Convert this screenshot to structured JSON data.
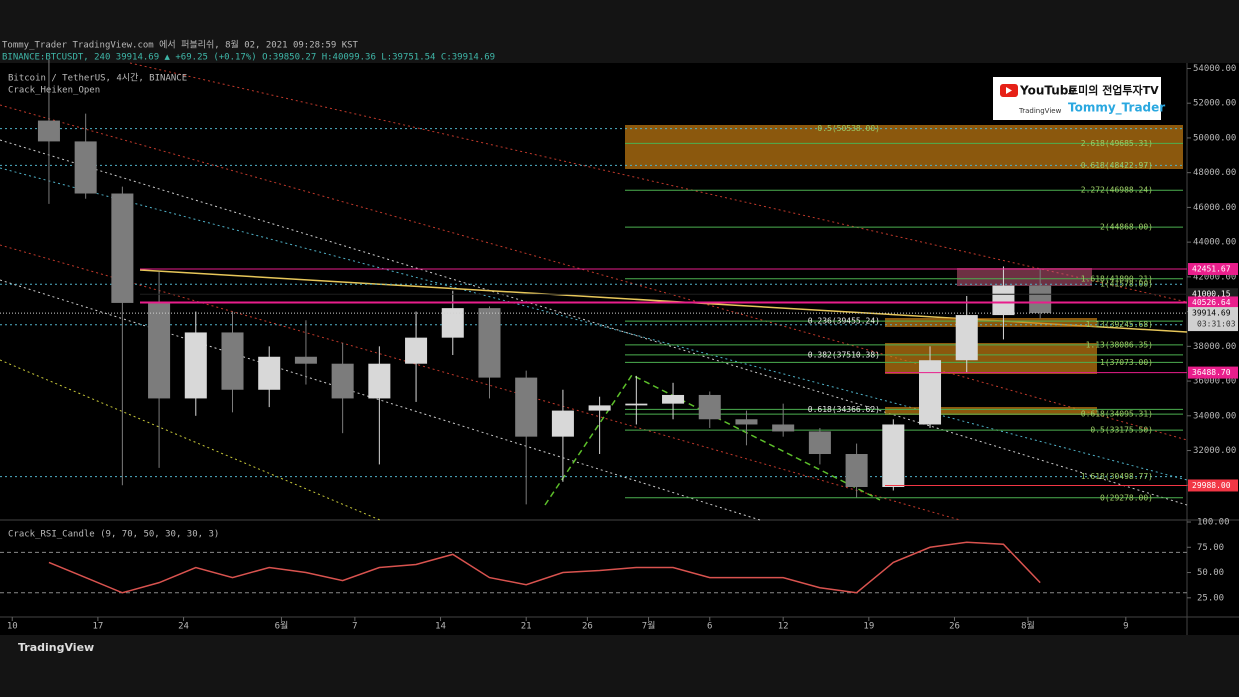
{
  "header": {
    "published": "Tommy_Trader TradingView.com 에서 퍼블리쉬, 8월 02, 2021 09:28:59 KST",
    "symbol_line": "BINANCE:BTCUSDT, 240  39914.69 ▲ +69.25 (+0.17%) O:39850.27 H:40099.36 L:39751.54 C:39914.69"
  },
  "watermark": {
    "youtube": "YouTube",
    "tradingview": "TradingView",
    "channel": "토미의 전업투자TV",
    "handle": "Tommy_Trader"
  },
  "footer": "TradingView",
  "chart_data": [
    {
      "type": "candlestick",
      "title": "Bitcoin / TetherUS, 4시간, BINANCE",
      "indicator": "Crack_Heiken_Open",
      "up_color": "#d8d8d8",
      "down_color": "#7c7c7c",
      "x": [
        "2021-05-13",
        "2021-05-16",
        "2021-05-19",
        "2021-05-22",
        "2021-05-25",
        "2021-05-28",
        "2021-05-31",
        "2021-06-03",
        "2021-06-06",
        "2021-06-09",
        "2021-06-12",
        "2021-06-15",
        "2021-06-18",
        "2021-06-21",
        "2021-06-24",
        "2021-06-27",
        "2021-06-30",
        "2021-07-03",
        "2021-07-06",
        "2021-07-09",
        "2021-07-12",
        "2021-07-15",
        "2021-07-18",
        "2021-07-21",
        "2021-07-24",
        "2021-07-27",
        "2021-07-30",
        "2021-08-02"
      ],
      "open": [
        51000,
        49800,
        46800,
        40500,
        35000,
        38800,
        35500,
        37400,
        37000,
        35000,
        37000,
        38500,
        40200,
        36200,
        32800,
        34300,
        34600,
        34700,
        35200,
        33800,
        33500,
        33100,
        31800,
        29900,
        33500,
        37200,
        39800,
        41500
      ],
      "high": [
        54500,
        51400,
        47200,
        42300,
        40000,
        40000,
        38000,
        39500,
        38200,
        38000,
        40000,
        41200,
        40300,
        36600,
        35500,
        35100,
        36300,
        35900,
        35400,
        34300,
        34700,
        33300,
        32400,
        33800,
        38000,
        40900,
        42600,
        42450
      ],
      "low": [
        46200,
        46500,
        30000,
        31000,
        34000,
        34200,
        34500,
        35800,
        33000,
        31200,
        34800,
        37500,
        35000,
        28900,
        30200,
        31800,
        33500,
        33800,
        33300,
        32300,
        32800,
        31200,
        29300,
        29700,
        33300,
        36500,
        38400,
        39600
      ],
      "close": [
        49800,
        46800,
        40500,
        35000,
        38800,
        35500,
        37400,
        37000,
        35000,
        37000,
        38500,
        40200,
        36200,
        32800,
        34300,
        34600,
        34700,
        35200,
        33800,
        33500,
        33100,
        31800,
        29900,
        33500,
        37200,
        39800,
        41500,
        39914.69
      ],
      "xlim": [
        "2021-05-09",
        "2021-08-14"
      ],
      "xticks": [
        {
          "value": "2021-05-10",
          "label": "10"
        },
        {
          "value": "2021-05-17",
          "label": "17"
        },
        {
          "value": "2021-05-24",
          "label": "24"
        },
        {
          "value": "2021-06-01",
          "label": "6월"
        },
        {
          "value": "2021-06-07",
          "label": "7"
        },
        {
          "value": "2021-06-14",
          "label": "14"
        },
        {
          "value": "2021-06-21",
          "label": "21"
        },
        {
          "value": "2021-06-26",
          "label": "26"
        },
        {
          "value": "2021-07-01",
          "label": "7월"
        },
        {
          "value": "2021-07-06",
          "label": "6"
        },
        {
          "value": "2021-07-12",
          "label": "12"
        },
        {
          "value": "2021-07-19",
          "label": "19"
        },
        {
          "value": "2021-07-26",
          "label": "26"
        },
        {
          "value": "2021-08-01",
          "label": "8월"
        },
        {
          "value": "2021-08-09",
          "label": "9"
        }
      ],
      "ylim": [
        28000,
        54200
      ],
      "yticks": [
        {
          "value": 54000,
          "label": "54000.00"
        },
        {
          "value": 52000,
          "label": "52000.00"
        },
        {
          "value": 50000,
          "label": "50000.00"
        },
        {
          "value": 48000,
          "label": "48000.00"
        },
        {
          "value": 46000,
          "label": "46000.00"
        },
        {
          "value": 44000,
          "label": "44000.00"
        },
        {
          "value": 42000,
          "label": "42000.00"
        },
        {
          "value": 40000,
          "label": "40000.00"
        },
        {
          "value": 38000,
          "label": "38000.00"
        },
        {
          "value": 36000,
          "label": "36000.00"
        },
        {
          "value": 34000,
          "label": "34000.00"
        },
        {
          "value": 32000,
          "label": "32000.00"
        },
        {
          "value": 30000,
          "label": "30000.00"
        }
      ],
      "price_labels": [
        {
          "value": 42451.67,
          "color": "#e91e8c"
        },
        {
          "value": 41000.15,
          "color": "#1e1e1e"
        },
        {
          "value": 40526.64,
          "color": "#e91e8c"
        },
        {
          "value": 39914.69,
          "color": "#d0d0d0",
          "countdown": "03:31:03"
        },
        {
          "value": 36488.7,
          "label": "36488.70",
          "color": "#e91e8c"
        },
        {
          "value": 29988,
          "label": "29988.00",
          "color": "#f23645"
        }
      ],
      "levels": [
        {
          "text": "0.5(50538.00)",
          "price": 50538
        },
        {
          "text": "2.618(49685.31)",
          "price": 49685.31
        },
        {
          "text": "0.618(48422.97)",
          "price": 48422.97
        },
        {
          "text": "2.272(46988.24)",
          "price": 46988.24
        },
        {
          "text": "2(44868.00)",
          "price": 44868
        },
        {
          "text": "1.618(41890.21)",
          "price": 41890.21
        },
        {
          "text": "1(41578.00)",
          "price": 41578
        },
        {
          "text": "0.236(39455.24)",
          "price": 39455.24
        },
        {
          "text": "1.13(39245.68)",
          "price": 39245.68
        },
        {
          "text": "1.13(38086.35)",
          "price": 38086.35
        },
        {
          "text": "0.382(37510.38)",
          "price": 37510.38
        },
        {
          "text": "1(37073.00)",
          "price": 37073
        },
        {
          "text": "0.618(34366.62)",
          "price": 34366.62
        },
        {
          "text": "0.618(34095.31)",
          "price": 34095.31
        },
        {
          "text": "0.5(33175.50)",
          "price": 33175.5
        },
        {
          "text": "1.618(30498.77)",
          "price": 30498.77
        },
        {
          "text": "0(29278.00)",
          "price": 29278
        }
      ]
    },
    {
      "type": "line",
      "title": "Crack_RSI_Candle (9, 70, 50, 30, 30, 3)",
      "color": "#d9534f",
      "x": [
        "2021-05-13",
        "2021-05-16",
        "2021-05-19",
        "2021-05-22",
        "2021-05-25",
        "2021-05-28",
        "2021-05-31",
        "2021-06-03",
        "2021-06-06",
        "2021-06-09",
        "2021-06-12",
        "2021-06-15",
        "2021-06-18",
        "2021-06-21",
        "2021-06-24",
        "2021-06-27",
        "2021-06-30",
        "2021-07-03",
        "2021-07-06",
        "2021-07-09",
        "2021-07-12",
        "2021-07-15",
        "2021-07-18",
        "2021-07-21",
        "2021-07-24",
        "2021-07-27",
        "2021-07-30",
        "2021-08-02"
      ],
      "values": [
        60,
        45,
        30,
        40,
        55,
        45,
        55,
        50,
        42,
        55,
        58,
        68,
        45,
        38,
        50,
        52,
        55,
        55,
        45,
        45,
        45,
        35,
        30,
        60,
        75,
        80,
        78,
        40
      ],
      "bands": [
        70,
        30
      ],
      "ylim": [
        8,
        101
      ],
      "yticks": [
        {
          "value": 100,
          "label": "100.00"
        },
        {
          "value": 75,
          "label": "75.00"
        },
        {
          "value": 50,
          "label": "50.00"
        },
        {
          "value": 25,
          "label": "25.00"
        }
      ]
    }
  ]
}
